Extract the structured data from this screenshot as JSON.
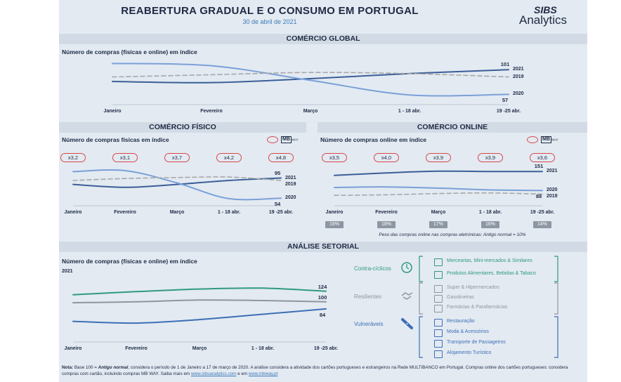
{
  "header": {
    "title": "REABERTURA GRADUAL E O CONSUMO EM PORTUGAL",
    "date": "30 de abril de 2021",
    "logo_top": "SIBS",
    "logo_bottom": "Analytics"
  },
  "colors": {
    "y2021": "#3a5f98",
    "y2020": "#7aa0d8",
    "y2019": "#a8a8a8",
    "contra": "#2f9a80",
    "resil": "#8f969e",
    "vuln": "#3d6fb5",
    "badge": "#d94848"
  },
  "sections": {
    "global": "COMÉRCIO GLOBAL",
    "fisico": "COMÉRCIO FÍSICO",
    "online": "COMÉRCIO ONLINE",
    "setorial": "ANÁLISE SETORIAL"
  },
  "mbway": {
    "mb": "MB",
    "way": "WAY"
  },
  "chart_data": [
    {
      "id": "global",
      "type": "line",
      "title": "Número de compras (físicas e online) em índice",
      "categories": [
        "Janeiro",
        "Fevereiro",
        "Março",
        "1 - 18 abr.",
        "19 -25 abr."
      ],
      "ylim": [
        40,
        120
      ],
      "series": [
        {
          "name": "2021",
          "values": [
            80,
            78,
            85,
            94,
            101
          ]
        },
        {
          "name": "2020",
          "values": [
            112,
            108,
            82,
            56,
            57
          ]
        },
        {
          "name": "2019",
          "values": [
            88,
            92,
            96,
            94,
            88
          ]
        }
      ],
      "labels": {
        "2021": "101",
        "2020": "57"
      },
      "ylabel": "",
      "xlabel": ""
    },
    {
      "id": "fisico",
      "type": "line",
      "title": "Número de compras físicas em índice",
      "categories": [
        "Janeiro",
        "Fevereiro",
        "Março",
        "1 - 18 abr.",
        "19 -25 abr."
      ],
      "ylim": [
        40,
        120
      ],
      "multipliers": [
        "x3,2",
        "x3,1",
        "x3,7",
        "x4,2",
        "x4,8"
      ],
      "series": [
        {
          "name": "2021",
          "values": [
            82,
            76,
            82,
            90,
            95
          ]
        },
        {
          "name": "2020",
          "values": [
            108,
            110,
            85,
            53,
            54
          ]
        },
        {
          "name": "2019",
          "values": [
            90,
            94,
            96,
            97,
            90
          ]
        }
      ],
      "labels": {
        "2021": "95",
        "2020": "54"
      }
    },
    {
      "id": "online",
      "type": "line",
      "title": "Número de compras online em índice",
      "categories": [
        "Janeiro",
        "Fevereiro",
        "Março",
        "1 - 18 abr.",
        "19 -25 abr."
      ],
      "ylim": [
        40,
        170
      ],
      "multipliers": [
        "x3,5",
        "x4,0",
        "x3,9",
        "x3,9",
        "x3,6"
      ],
      "weights": [
        "16%",
        "18%",
        "17%",
        "16%",
        "14%"
      ],
      "weights_caption": "Peso das compras online nas compras eletrónicas: Antigo normal = 10%",
      "series": [
        {
          "name": "2021",
          "values": [
            138,
            146,
            152,
            151,
            151
          ]
        },
        {
          "name": "2020",
          "values": [
            98,
            100,
            96,
            90,
            88
          ]
        },
        {
          "name": "2019",
          "values": [
            72,
            74,
            78,
            80,
            76
          ]
        }
      ],
      "labels": {
        "2021": "151",
        "2020": "88"
      }
    },
    {
      "id": "setorial",
      "type": "line",
      "title": "Número de compras (físicas e online) em índice",
      "year_label": "2021",
      "categories": [
        "Janeiro",
        "Fevereiro",
        "Março",
        "1 - 18 abr.",
        "19 -25 abr."
      ],
      "ylim": [
        30,
        160
      ],
      "series": [
        {
          "name": "Contra-cíclicos",
          "values": [
            116,
            123,
            129,
            131,
            124
          ]
        },
        {
          "name": "Resilientes",
          "values": [
            98,
            100,
            104,
            103,
            100
          ]
        },
        {
          "name": "Vulneráveis",
          "values": [
            56,
            52,
            60,
            72,
            84
          ]
        }
      ],
      "labels": {
        "Contra-cíclicos": "124",
        "Resilientes": "100",
        "Vulneráveis": "84"
      }
    }
  ],
  "legend_setorial": {
    "groups": [
      {
        "name": "Contra-cíclicos",
        "items": [
          "Mercearias, Mini-mercados & Similares",
          "Produtos Alimentares, Bebidas & Tabaco"
        ]
      },
      {
        "name": "Resilientes",
        "items": [
          "Super & Hipermercados",
          "Gasolineiras",
          "Farmácias & Parafarmácias"
        ]
      },
      {
        "name": "Vulneráveis",
        "items": [
          "Restauração",
          "Moda & Acessórios",
          "Transporte de Passageiros",
          "Alojamento Turístico"
        ]
      }
    ]
  },
  "note": {
    "prefix": "Nota:",
    "text1": " Base 100 = ",
    "antigo": "Antigo normal",
    "text2": ", considera o período de 1 de Janeiro a 17 de março de 2020. A análise considera a atividade dos cartões portugueses e estrangeiros na Rede MULTIBANCO em Portugal. Compras online dos cartões portugueses: considera compras com cartão, incluindo compras MB WAY. Saiba mais em ",
    "link1": "www.sibsanalytics.com",
    "and": " e em ",
    "link2": "www.mbway.pt"
  }
}
